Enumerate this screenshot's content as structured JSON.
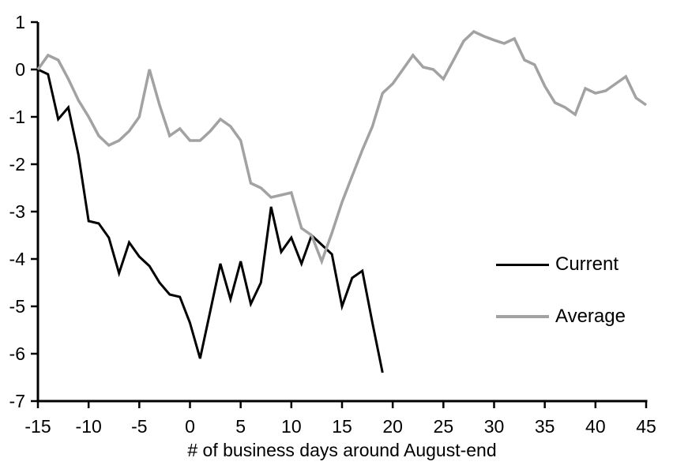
{
  "chart_data": {
    "type": "line",
    "title": "",
    "xlabel": "# of business days around August-end",
    "ylabel": "",
    "xlim": [
      -15,
      45
    ],
    "ylim": [
      -7,
      1
    ],
    "x_ticks": [
      -15,
      -10,
      -5,
      0,
      5,
      10,
      15,
      20,
      25,
      30,
      35,
      40,
      45
    ],
    "y_ticks": [
      1,
      0,
      -1,
      -2,
      -3,
      -4,
      -5,
      -6,
      -7
    ],
    "grid": false,
    "legend_position": "middle-right",
    "axis_color": "#000000",
    "background_color": "#ffffff",
    "series": [
      {
        "name": "Current",
        "color": "#000000",
        "stroke_width": 3,
        "x": [
          -15,
          -14,
          -13,
          -12,
          -11,
          -10,
          -9,
          -8,
          -7,
          -6,
          -5,
          -4,
          -3,
          -2,
          -1,
          0,
          1,
          2,
          3,
          4,
          5,
          6,
          7,
          8,
          9,
          10,
          11,
          12,
          13,
          14,
          15,
          16,
          17,
          18,
          19
        ],
        "values": [
          0,
          -0.1,
          -1.05,
          -0.8,
          -1.8,
          -3.2,
          -3.25,
          -3.55,
          -4.3,
          -3.65,
          -3.95,
          -4.15,
          -4.5,
          -4.75,
          -4.8,
          -5.35,
          -6.1,
          -5.1,
          -4.1,
          -4.85,
          -4.05,
          -4.95,
          -4.5,
          -2.9,
          -3.85,
          -3.55,
          -4.1,
          -3.5,
          -3.7,
          -3.9,
          -5.0,
          -4.4,
          -4.25,
          -5.35,
          -6.4
        ]
      },
      {
        "name": "Average",
        "color": "#a2a2a2",
        "stroke_width": 3.5,
        "x": [
          -15,
          -14,
          -13,
          -12,
          -11,
          -10,
          -9,
          -8,
          -7,
          -6,
          -5,
          -4,
          -3,
          -2,
          -1,
          0,
          1,
          2,
          3,
          4,
          5,
          6,
          7,
          8,
          9,
          10,
          11,
          12,
          13,
          14,
          15,
          16,
          17,
          18,
          19,
          20,
          21,
          22,
          23,
          24,
          25,
          26,
          27,
          28,
          29,
          30,
          31,
          32,
          33,
          34,
          35,
          36,
          37,
          38,
          39,
          40,
          41,
          42,
          43,
          44,
          45
        ],
        "values": [
          0,
          0.3,
          0.2,
          -0.2,
          -0.65,
          -1.0,
          -1.4,
          -1.6,
          -1.5,
          -1.3,
          -1.0,
          0.0,
          -0.75,
          -1.4,
          -1.25,
          -1.5,
          -1.5,
          -1.3,
          -1.05,
          -1.2,
          -1.5,
          -2.4,
          -2.5,
          -2.7,
          -2.65,
          -2.6,
          -3.35,
          -3.5,
          -4.05,
          -3.45,
          -2.8,
          -2.25,
          -1.7,
          -1.2,
          -0.5,
          -0.3,
          0.0,
          0.3,
          0.05,
          0.0,
          -0.2,
          0.2,
          0.6,
          0.8,
          0.7,
          0.62,
          0.55,
          0.65,
          0.2,
          0.1,
          -0.35,
          -0.7,
          -0.8,
          -0.95,
          -0.4,
          -0.5,
          -0.45,
          -0.3,
          -0.15,
          -0.6,
          -0.75
        ]
      }
    ]
  }
}
